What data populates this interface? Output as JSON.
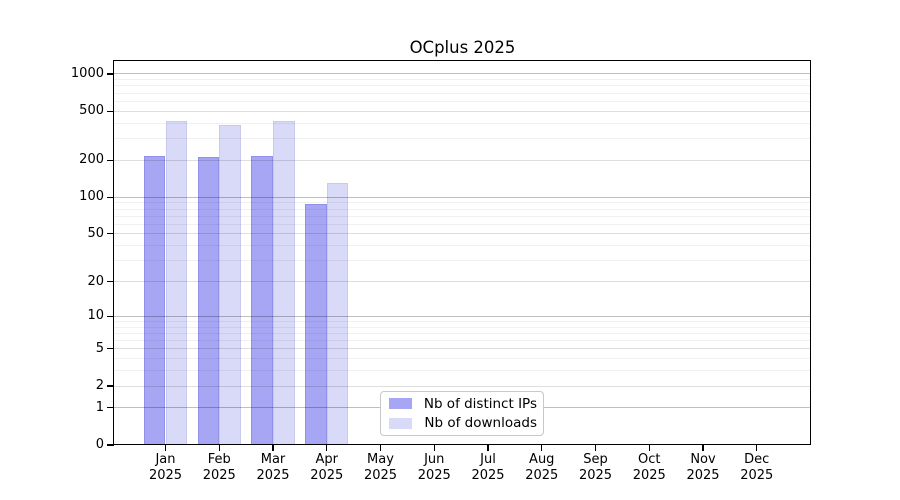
{
  "chart_data": {
    "type": "bar",
    "title": "OCplus 2025",
    "categories": [
      "Jan",
      "Feb",
      "Mar",
      "Apr",
      "May",
      "Jun",
      "Jul",
      "Aug",
      "Sep",
      "Oct",
      "Nov",
      "Dec"
    ],
    "x_tick_second_line": "2025",
    "series": [
      {
        "name": "Nb of distinct IPs",
        "color": "#a6a6f5",
        "border_color": "#9191e8",
        "values": [
          218,
          211,
          218,
          88,
          null,
          null,
          null,
          null,
          null,
          null,
          null,
          null
        ]
      },
      {
        "name": "Nb of downloads",
        "color": "#d9d9f8",
        "border_color": "#c9c9f0",
        "values": [
          420,
          388,
          420,
          131,
          null,
          null,
          null,
          null,
          null,
          null,
          null,
          null
        ]
      }
    ],
    "y_axis": {
      "ticks": [
        0,
        1,
        2,
        5,
        10,
        20,
        50,
        100,
        200,
        500,
        1000
      ],
      "scale": "symlog: position proportional to log10(1+value)",
      "ylim": [
        0,
        1270
      ]
    },
    "xlabel": "",
    "ylabel": "",
    "grid": "horizontal, minor log gridlines, drawn over bars",
    "legend": {
      "position": "inside bottom-center",
      "border": "#c8c8c8"
    }
  }
}
